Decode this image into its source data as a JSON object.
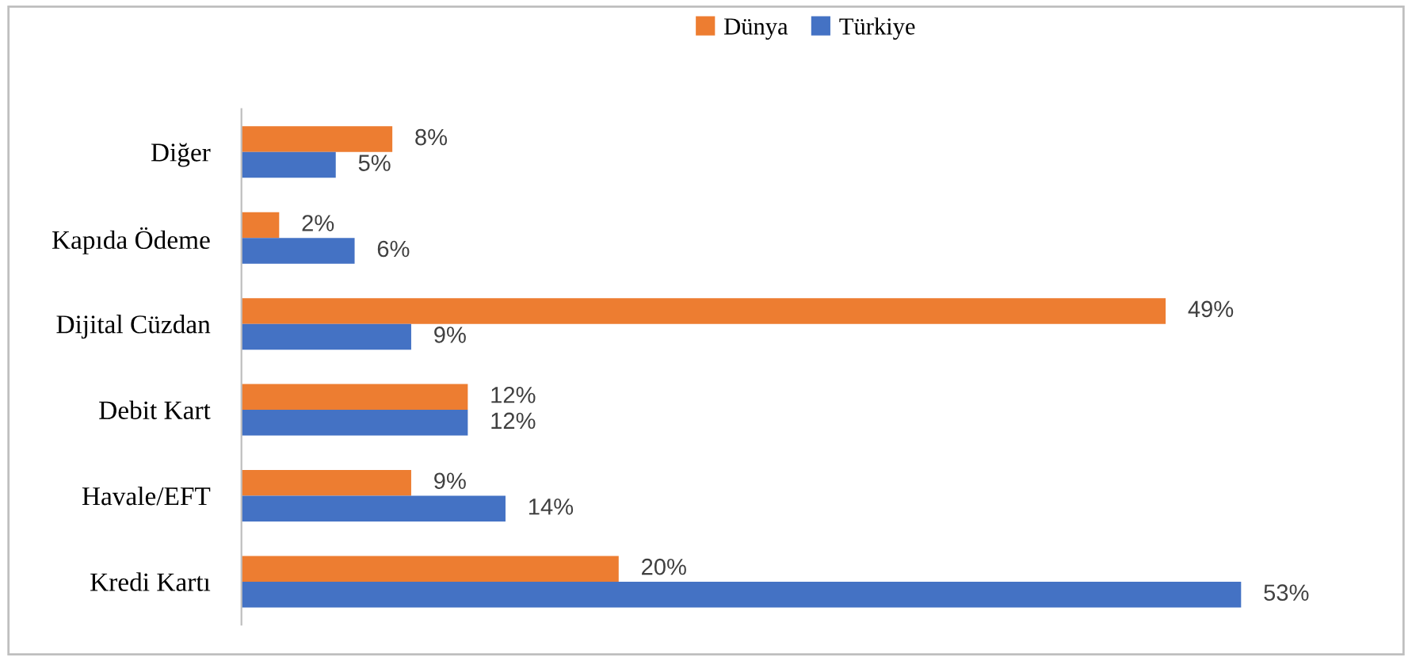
{
  "chart_data": {
    "type": "bar",
    "orientation": "horizontal",
    "categories": [
      "Diğer",
      "Kapıda Ödeme",
      "Dijital Cüzdan",
      "Debit Kart",
      "Havale/EFT",
      "Kredi Kartı"
    ],
    "series": [
      {
        "name": "Dünya",
        "color": "#ed7d31",
        "values": [
          8,
          2,
          49,
          12,
          9,
          20
        ],
        "value_labels": [
          "8%",
          "2%",
          "49%",
          "12%",
          "9%",
          "20%"
        ]
      },
      {
        "name": "Türkiye",
        "color": "#4472c4",
        "values": [
          5,
          6,
          9,
          12,
          14,
          53
        ],
        "value_labels": [
          "5%",
          "6%",
          "9%",
          "12%",
          "14%",
          "53%"
        ]
      }
    ],
    "legend": "top",
    "grid": false
  }
}
